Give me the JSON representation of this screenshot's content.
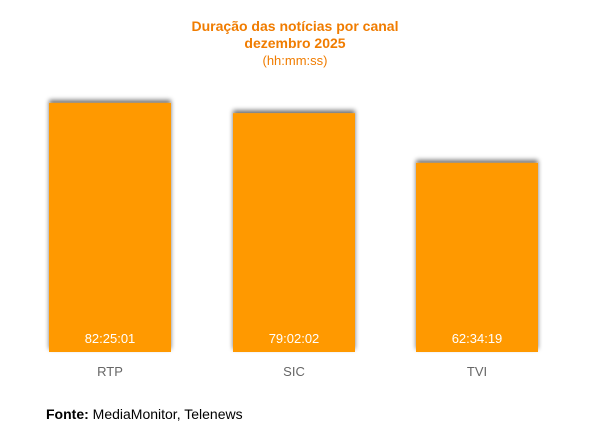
{
  "chart_data": {
    "type": "bar",
    "title_lines": [
      "Duração das notícias por canal",
      "dezembro 2025",
      "(hh:mm:ss)"
    ],
    "categories": [
      "RTP",
      "SIC",
      "TVI"
    ],
    "values": [
      82.4169,
      79.0339,
      62.5719
    ],
    "value_labels": [
      "82:25:01",
      "79:02:02",
      "62:34:19"
    ],
    "ylim": [
      0,
      90
    ],
    "bar_color": "#ff9900",
    "grid": false,
    "legend": "none"
  },
  "footer": {
    "source_label": "Fonte:",
    "source_text": " MediaMonitor, Telenews"
  }
}
